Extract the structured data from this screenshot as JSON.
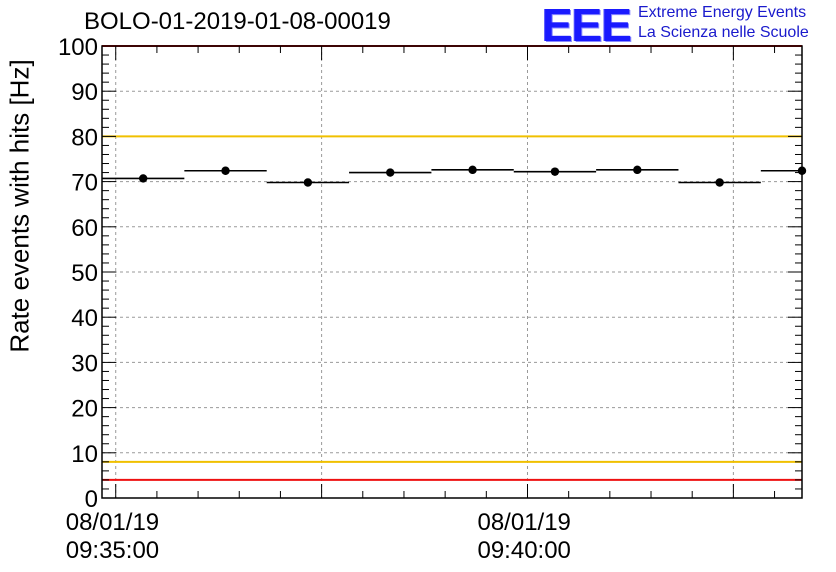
{
  "header": {
    "title": "BOLO-01-2019-01-08-00019",
    "logo_text": "EEE",
    "logo_line1": "Extreme Energy Events",
    "logo_line2": "La Scienza nelle Scuole"
  },
  "chart_data": {
    "type": "scatter",
    "title": "BOLO-01-2019-01-08-00019",
    "ylabel": "Rate events with hits [Hz]",
    "xlabel": "",
    "ylim": [
      0,
      100
    ],
    "yticks": [
      "0",
      "10",
      "20",
      "30",
      "40",
      "50",
      "60",
      "70",
      "80",
      "90",
      "100"
    ],
    "x_axis": "time",
    "xlim": [
      "08/01/19 09:34:50",
      "08/01/19 09:43:20"
    ],
    "xticks": [
      {
        "date": "08/01/19",
        "time": "09:35:00"
      },
      {
        "date": "08/01/19",
        "time": "09:40:00"
      }
    ],
    "grid": true,
    "reference_lines": [
      {
        "y": 80,
        "color": "#f0c000"
      },
      {
        "y": 8,
        "color": "#f0c000"
      },
      {
        "y": 4,
        "color": "#ee1111"
      },
      {
        "y": 100,
        "color": "#ee1111"
      }
    ],
    "series": [
      {
        "marker_color": "#000000",
        "points": [
          {
            "x_start": "09:34:50",
            "x_end": "09:35:50",
            "y": 70.7
          },
          {
            "x_start": "09:35:50",
            "x_end": "09:36:50",
            "y": 72.4
          },
          {
            "x_start": "09:36:50",
            "x_end": "09:37:50",
            "y": 69.8
          },
          {
            "x_start": "09:37:50",
            "x_end": "09:38:50",
            "y": 72.0
          },
          {
            "x_start": "09:38:50",
            "x_end": "09:39:50",
            "y": 72.6
          },
          {
            "x_start": "09:39:50",
            "x_end": "09:40:50",
            "y": 72.2
          },
          {
            "x_start": "09:40:50",
            "x_end": "09:41:50",
            "y": 72.6
          },
          {
            "x_start": "09:41:50",
            "x_end": "09:42:50",
            "y": 69.8
          },
          {
            "x_start": "09:42:50",
            "x_end": "09:43:50",
            "y": 72.4
          }
        ]
      }
    ]
  }
}
